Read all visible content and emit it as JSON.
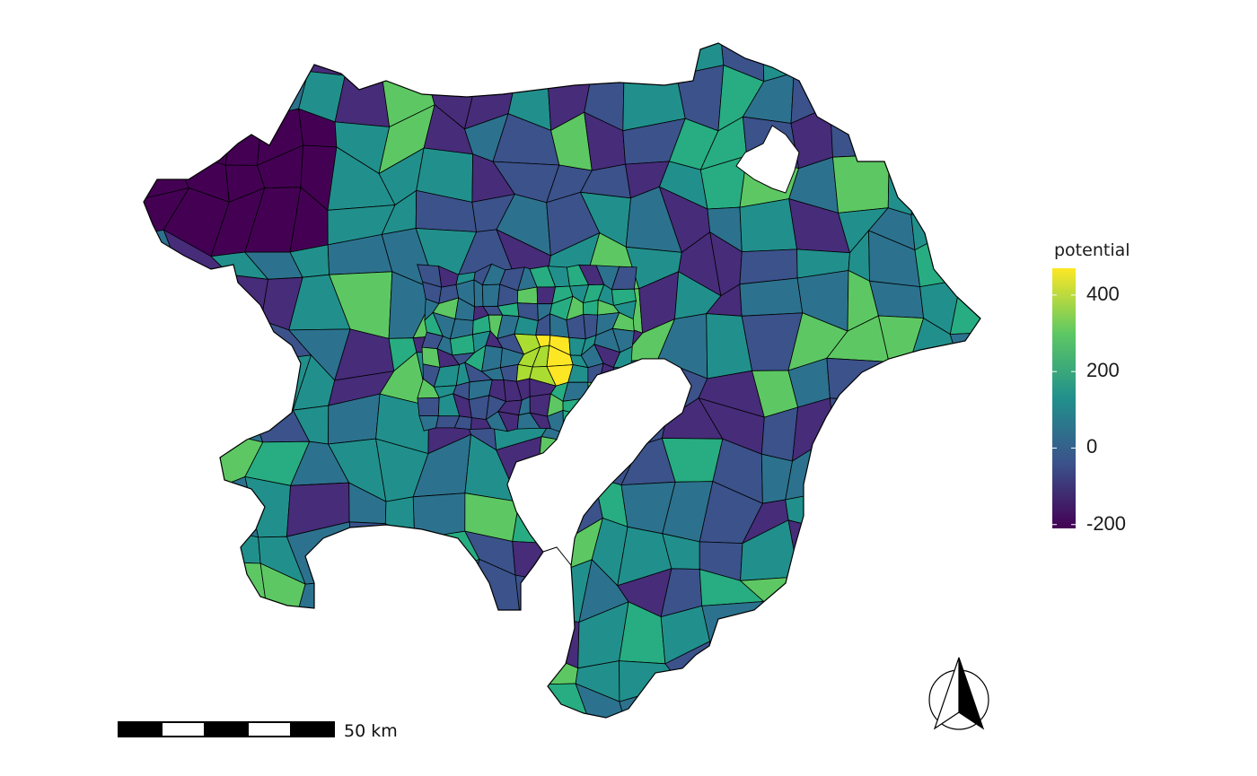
{
  "map": {
    "region": "Greater Tokyo municipalities",
    "fill_variable": "potential",
    "palette": "viridis"
  },
  "legend": {
    "title": "potential",
    "ticks": [
      {
        "value": 400,
        "label": "400"
      },
      {
        "value": 200,
        "label": "200"
      },
      {
        "value": 0,
        "label": "0"
      },
      {
        "value": -200,
        "label": "-200"
      }
    ],
    "range": [
      -210,
      470
    ],
    "colors": [
      "#440154",
      "#3b528b",
      "#21908c",
      "#5dc863",
      "#fde725"
    ]
  },
  "scale_bar": {
    "label": "50 km",
    "segments": 5
  },
  "north_arrow": {
    "icon": "north-arrow-icon"
  }
}
